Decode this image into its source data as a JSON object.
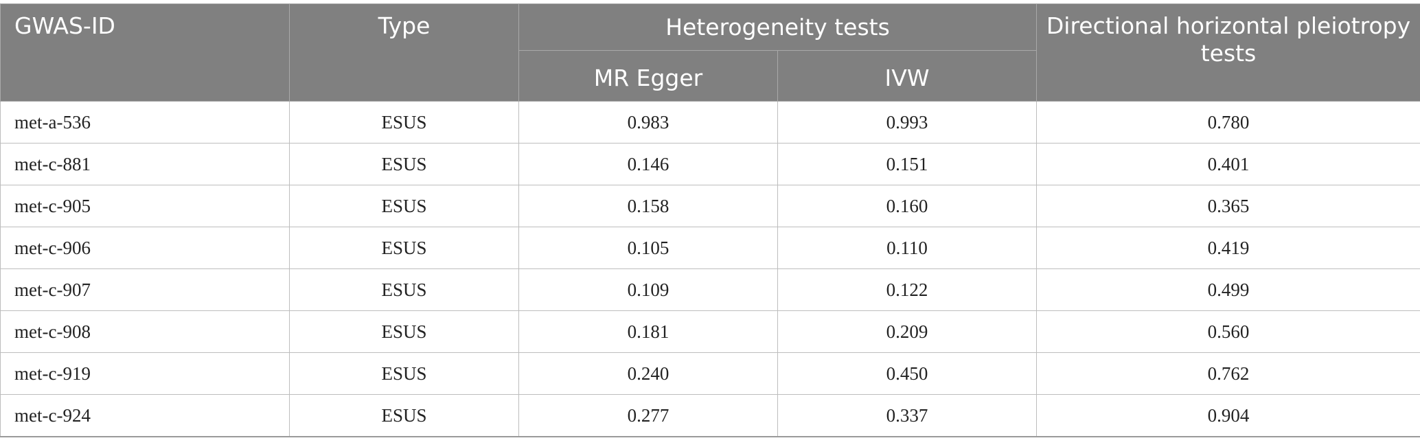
{
  "table": {
    "headers": {
      "gwas_id": "GWAS-ID",
      "type": "Type",
      "heterogeneity": "Heterogeneity tests",
      "mr_egger": "MR Egger",
      "ivw": "IVW",
      "directional": "Directional horizontal pleiotropy tests"
    },
    "rows": [
      {
        "id": "met-a-536",
        "type": "ESUS",
        "mr_egger": "0.983",
        "ivw": "0.993",
        "directional": "0.780"
      },
      {
        "id": "met-c-881",
        "type": "ESUS",
        "mr_egger": "0.146",
        "ivw": "0.151",
        "directional": "0.401"
      },
      {
        "id": "met-c-905",
        "type": "ESUS",
        "mr_egger": "0.158",
        "ivw": "0.160",
        "directional": "0.365"
      },
      {
        "id": "met-c-906",
        "type": "ESUS",
        "mr_egger": "0.105",
        "ivw": "0.110",
        "directional": "0.419"
      },
      {
        "id": "met-c-907",
        "type": "ESUS",
        "mr_egger": "0.109",
        "ivw": "0.122",
        "directional": "0.499"
      },
      {
        "id": "met-c-908",
        "type": "ESUS",
        "mr_egger": "0.181",
        "ivw": "0.209",
        "directional": "0.560"
      },
      {
        "id": "met-c-919",
        "type": "ESUS",
        "mr_egger": "0.240",
        "ivw": "0.450",
        "directional": "0.762"
      },
      {
        "id": "met-c-924",
        "type": "ESUS",
        "mr_egger": "0.277",
        "ivw": "0.337",
        "directional": "0.904"
      }
    ]
  }
}
